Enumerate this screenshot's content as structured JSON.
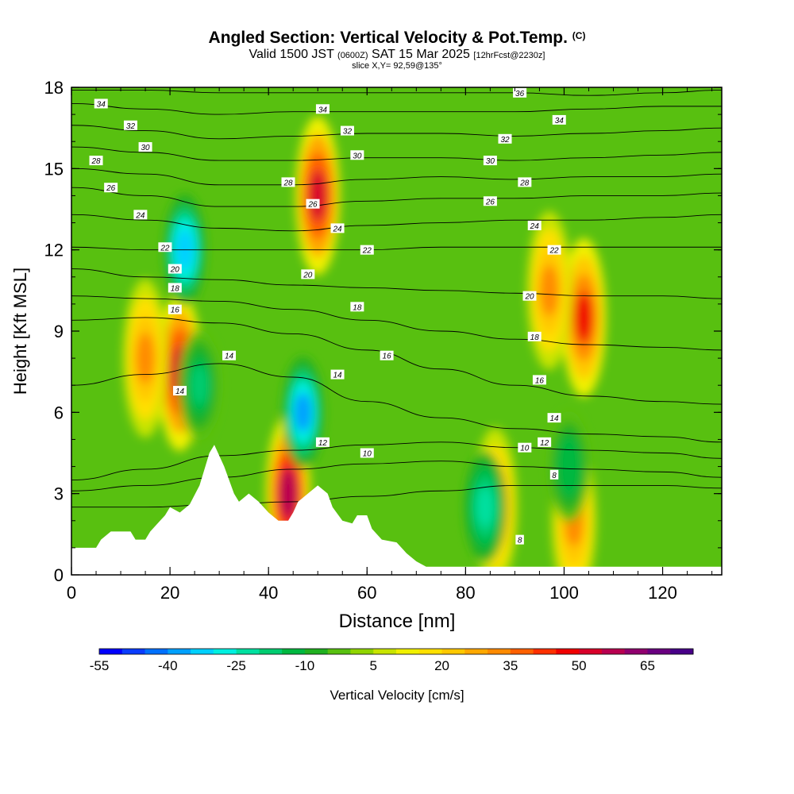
{
  "header": {
    "title": "Angled Section: Vertical Velocity & Pot.Temp.",
    "copyright": "(C)",
    "valid_prefix": "Valid 1500 JST",
    "valid_utc": "(0600Z)",
    "valid_date": "SAT 15 Mar 2025",
    "forecast": "[12hrFcst@2230z]",
    "slice": "slice X,Y= 92,59@135°"
  },
  "chart_data": {
    "type": "heatmap",
    "xlabel": "Distance [nm]",
    "ylabel": "Height [Kft MSL]",
    "xlim": [
      0,
      132
    ],
    "ylim": [
      0,
      18
    ],
    "x_ticks": [
      "0",
      "20",
      "40",
      "60",
      "80",
      "100",
      "120"
    ],
    "y_ticks": [
      "0",
      "3",
      "6",
      "9",
      "12",
      "15",
      "18"
    ],
    "colorbar": {
      "label": "Vertical Velocity [cm/s]",
      "tick_labels": [
        "-55",
        "-40",
        "-25",
        "-10",
        "5",
        "20",
        "35",
        "50",
        "65"
      ],
      "min": -55,
      "max": 75,
      "step": 5,
      "colors": [
        "#0000ff",
        "#0a3cff",
        "#0070ff",
        "#00a0ff",
        "#00d0ff",
        "#00f0e0",
        "#00e0a0",
        "#00cc70",
        "#00b840",
        "#20b020",
        "#58c010",
        "#90d400",
        "#c8e400",
        "#f0f000",
        "#ffe000",
        "#ffc800",
        "#ffa800",
        "#ff8a00",
        "#ff6000",
        "#ff3000",
        "#f00000",
        "#d8002a",
        "#b80050",
        "#90006e",
        "#6a0080",
        "#480088"
      ]
    },
    "updraft_cores": [
      {
        "x": 50,
        "z": 14,
        "w": 50
      },
      {
        "x": 22,
        "z": 7.5,
        "w": 50
      },
      {
        "x": 44,
        "z": 3,
        "w": 55
      },
      {
        "x": 104,
        "z": 9.5,
        "w": 45
      },
      {
        "x": 86,
        "z": 2.5,
        "w": 35
      },
      {
        "x": 15,
        "z": 8,
        "w": 30
      },
      {
        "x": 97,
        "z": 10.5,
        "w": 30
      },
      {
        "x": 102,
        "z": 2,
        "w": 30
      }
    ],
    "downdraft_cores": [
      {
        "x": 23,
        "z": 12,
        "w": -35
      },
      {
        "x": 47,
        "z": 6,
        "w": -40
      },
      {
        "x": 84,
        "z": 2.5,
        "w": -25
      },
      {
        "x": 26,
        "z": 7,
        "w": -20
      },
      {
        "x": 101,
        "z": 4,
        "w": -15
      }
    ],
    "isentropes": [
      {
        "theta": 8,
        "z": [
          2.5,
          2.5,
          2.6,
          2.7,
          2.9,
          3.1,
          3.3,
          3.3,
          3.3,
          3.2
        ]
      },
      {
        "theta": 10,
        "z": [
          3.1,
          3.3,
          3.6,
          3.9,
          4.1,
          4.2,
          4.0,
          3.9,
          3.8,
          3.6
        ]
      },
      {
        "theta": 12,
        "z": [
          3.5,
          3.9,
          4.4,
          4.6,
          4.8,
          4.9,
          4.7,
          4.6,
          4.5,
          4.3
        ]
      },
      {
        "theta": 14,
        "z": [
          7.0,
          7.4,
          7.8,
          7.3,
          6.4,
          5.8,
          5.4,
          5.2,
          5.1,
          4.9
        ]
      },
      {
        "theta": 16,
        "z": [
          9.4,
          9.5,
          9.3,
          8.9,
          8.3,
          7.6,
          7.0,
          6.6,
          6.4,
          6.3
        ]
      },
      {
        "theta": 18,
        "z": [
          10.3,
          10.2,
          10.1,
          9.8,
          9.4,
          9.0,
          8.7,
          8.5,
          8.4,
          8.3
        ]
      },
      {
        "theta": 20,
        "z": [
          11.3,
          11.0,
          10.9,
          10.7,
          10.6,
          10.5,
          10.4,
          10.3,
          10.3,
          10.2
        ]
      },
      {
        "theta": 22,
        "z": [
          12.1,
          12.0,
          12.0,
          12.0,
          12.0,
          12.1,
          12.1,
          12.1,
          12.1,
          12.1
        ]
      },
      {
        "theta": 24,
        "z": [
          13.3,
          13.1,
          12.8,
          12.7,
          12.9,
          13.0,
          13.1,
          13.1,
          13.2,
          13.3
        ]
      },
      {
        "theta": 26,
        "z": [
          14.3,
          14.0,
          13.6,
          13.6,
          13.8,
          13.9,
          13.9,
          14.0,
          14.0,
          14.1
        ]
      },
      {
        "theta": 28,
        "z": [
          15.0,
          14.8,
          14.4,
          14.4,
          14.6,
          14.7,
          14.6,
          14.7,
          14.7,
          14.8
        ]
      },
      {
        "theta": 30,
        "z": [
          15.8,
          15.6,
          15.3,
          15.3,
          15.4,
          15.4,
          15.3,
          15.4,
          15.5,
          15.6
        ]
      },
      {
        "theta": 32,
        "z": [
          16.6,
          16.4,
          16.1,
          16.2,
          16.3,
          16.3,
          16.2,
          16.3,
          16.4,
          16.5
        ]
      },
      {
        "theta": 34,
        "z": [
          17.4,
          17.2,
          17.0,
          17.1,
          17.1,
          17.1,
          17.1,
          17.2,
          17.3,
          17.3
        ]
      },
      {
        "theta": 36,
        "z": [
          17.9,
          17.9,
          17.8,
          17.8,
          17.8,
          17.8,
          17.8,
          17.7,
          17.8,
          17.9
        ]
      }
    ],
    "isentrope_x": [
      0,
      15,
      30,
      45,
      60,
      75,
      90,
      105,
      120,
      132
    ],
    "isentrope_labels": [
      {
        "text": "34",
        "x": 6,
        "z": 17.4
      },
      {
        "text": "32",
        "x": 12,
        "z": 16.6
      },
      {
        "text": "30",
        "x": 15,
        "z": 15.8
      },
      {
        "text": "28",
        "x": 5,
        "z": 15.3
      },
      {
        "text": "26",
        "x": 8,
        "z": 14.3
      },
      {
        "text": "24",
        "x": 14,
        "z": 13.3
      },
      {
        "text": "22",
        "x": 19,
        "z": 12.1
      },
      {
        "text": "20",
        "x": 21,
        "z": 11.3
      },
      {
        "text": "18",
        "x": 21,
        "z": 10.6
      },
      {
        "text": "16",
        "x": 21,
        "z": 9.8
      },
      {
        "text": "14",
        "x": 32,
        "z": 8.1
      },
      {
        "text": "14",
        "x": 22,
        "z": 6.8
      },
      {
        "text": "34",
        "x": 51,
        "z": 17.2
      },
      {
        "text": "32",
        "x": 56,
        "z": 16.4
      },
      {
        "text": "30",
        "x": 58,
        "z": 15.5
      },
      {
        "text": "28",
        "x": 44,
        "z": 14.5
      },
      {
        "text": "26",
        "x": 49,
        "z": 13.7
      },
      {
        "text": "24",
        "x": 54,
        "z": 12.8
      },
      {
        "text": "22",
        "x": 60,
        "z": 12.0
      },
      {
        "text": "20",
        "x": 48,
        "z": 11.1
      },
      {
        "text": "18",
        "x": 58,
        "z": 9.9
      },
      {
        "text": "16",
        "x": 64,
        "z": 8.1
      },
      {
        "text": "14",
        "x": 54,
        "z": 7.4
      },
      {
        "text": "12",
        "x": 51,
        "z": 4.9
      },
      {
        "text": "10",
        "x": 60,
        "z": 4.5
      },
      {
        "text": "36",
        "x": 91,
        "z": 17.8
      },
      {
        "text": "34",
        "x": 99,
        "z": 16.8
      },
      {
        "text": "32",
        "x": 88,
        "z": 16.1
      },
      {
        "text": "30",
        "x": 85,
        "z": 15.3
      },
      {
        "text": "28",
        "x": 92,
        "z": 14.5
      },
      {
        "text": "26",
        "x": 85,
        "z": 13.8
      },
      {
        "text": "24",
        "x": 94,
        "z": 12.9
      },
      {
        "text": "22",
        "x": 98,
        "z": 12.0
      },
      {
        "text": "20",
        "x": 93,
        "z": 10.3
      },
      {
        "text": "18",
        "x": 94,
        "z": 8.8
      },
      {
        "text": "16",
        "x": 95,
        "z": 7.2
      },
      {
        "text": "14",
        "x": 98,
        "z": 5.8
      },
      {
        "text": "12",
        "x": 96,
        "z": 4.9
      },
      {
        "text": "10",
        "x": 92,
        "z": 4.7
      },
      {
        "text": "8",
        "x": 98,
        "z": 3.7
      },
      {
        "text": "8",
        "x": 91,
        "z": 1.3
      }
    ],
    "terrain": [
      {
        "x": 0,
        "z": 1.0
      },
      {
        "x": 5,
        "z": 1.0
      },
      {
        "x": 6,
        "z": 1.3
      },
      {
        "x": 8,
        "z": 1.6
      },
      {
        "x": 12,
        "z": 1.6
      },
      {
        "x": 13,
        "z": 1.3
      },
      {
        "x": 15,
        "z": 1.3
      },
      {
        "x": 16,
        "z": 1.6
      },
      {
        "x": 18,
        "z": 2.0
      },
      {
        "x": 19,
        "z": 2.2
      },
      {
        "x": 20,
        "z": 2.5
      },
      {
        "x": 22,
        "z": 2.3
      },
      {
        "x": 24,
        "z": 2.6
      },
      {
        "x": 26,
        "z": 3.3
      },
      {
        "x": 28,
        "z": 4.5
      },
      {
        "x": 29,
        "z": 4.8
      },
      {
        "x": 31,
        "z": 4.0
      },
      {
        "x": 33,
        "z": 3.0
      },
      {
        "x": 34,
        "z": 2.7
      },
      {
        "x": 36,
        "z": 3.0
      },
      {
        "x": 38,
        "z": 2.7
      },
      {
        "x": 40,
        "z": 2.3
      },
      {
        "x": 42,
        "z": 2.0
      },
      {
        "x": 44,
        "z": 2.0
      },
      {
        "x": 45,
        "z": 2.3
      },
      {
        "x": 46,
        "z": 2.7
      },
      {
        "x": 48,
        "z": 3.0
      },
      {
        "x": 50,
        "z": 3.3
      },
      {
        "x": 52,
        "z": 3.0
      },
      {
        "x": 53,
        "z": 2.5
      },
      {
        "x": 55,
        "z": 2.0
      },
      {
        "x": 57,
        "z": 1.9
      },
      {
        "x": 58,
        "z": 2.2
      },
      {
        "x": 60,
        "z": 2.2
      },
      {
        "x": 61,
        "z": 1.7
      },
      {
        "x": 63,
        "z": 1.3
      },
      {
        "x": 66,
        "z": 1.2
      },
      {
        "x": 68,
        "z": 0.8
      },
      {
        "x": 70,
        "z": 0.5
      },
      {
        "x": 72,
        "z": 0.3
      },
      {
        "x": 132,
        "z": 0.3
      }
    ]
  }
}
